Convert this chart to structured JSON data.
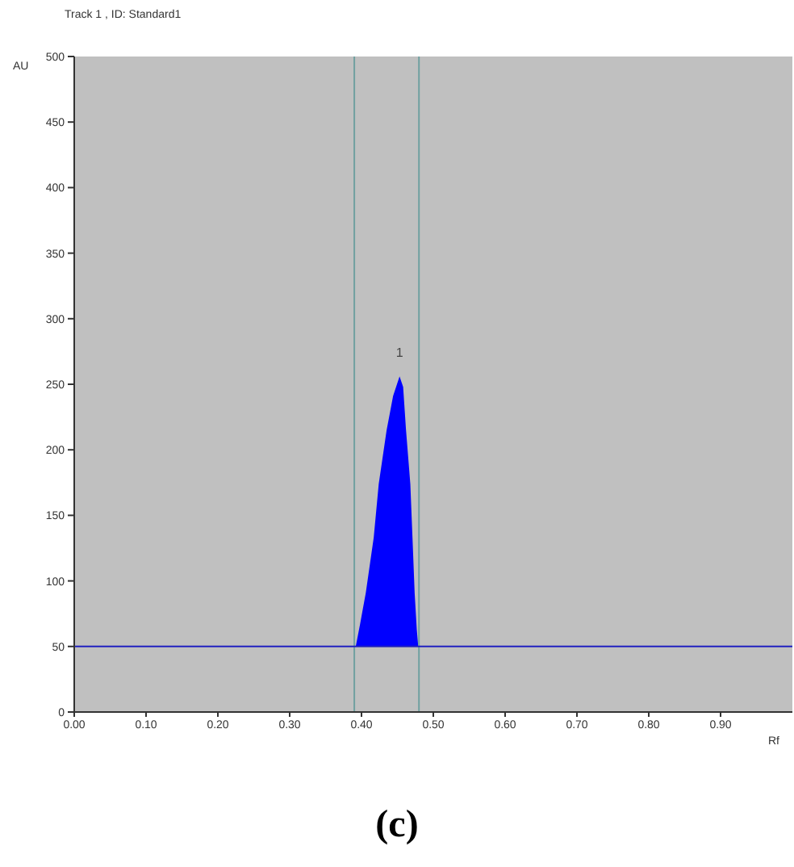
{
  "chart_data": {
    "type": "area",
    "title": "Track  1 , ID: Standard1",
    "xlabel": "Rf",
    "ylabel": "AU",
    "x": [
      0.392,
      0.398,
      0.406,
      0.417,
      0.424,
      0.435,
      0.444,
      0.453,
      0.458,
      0.462,
      0.468,
      0.471,
      0.474,
      0.477,
      0.479
    ],
    "series": [
      {
        "color": "#0000ff",
        "values": [
          50,
          67,
          91,
          133,
          174,
          215,
          241,
          256,
          248,
          215,
          174,
          133,
          91,
          63,
          50
        ]
      }
    ],
    "xlim": [
      0,
      1
    ],
    "xticks": [
      {
        "value": 0,
        "label": "0.00"
      },
      {
        "value": 0.1,
        "label": "0.10"
      },
      {
        "value": 0.2,
        "label": "0.20"
      },
      {
        "value": 0.3,
        "label": "0.30"
      },
      {
        "value": 0.4,
        "label": "0.40"
      },
      {
        "value": 0.5,
        "label": "0.50"
      },
      {
        "value": 0.6,
        "label": "0.60"
      },
      {
        "value": 0.7,
        "label": "0.70"
      },
      {
        "value": 0.8,
        "label": "0.80"
      },
      {
        "value": 0.9,
        "label": "0.90"
      }
    ],
    "ylim": [
      0,
      500
    ],
    "yticks": [
      0,
      50,
      100,
      150,
      200,
      250,
      300,
      350,
      400,
      450,
      500
    ],
    "grid": false,
    "legend": false,
    "ref_lines": [
      {
        "axis": "x",
        "value": 0.39,
        "color": "#70a0a0"
      },
      {
        "axis": "x",
        "value": 0.48,
        "color": "#70a0a0"
      },
      {
        "axis": "y",
        "value": 50,
        "color": "#2020c0"
      }
    ],
    "annotations": [
      {
        "text": "1",
        "x": 0.453,
        "y": 256
      },
      "(c)"
    ]
  }
}
